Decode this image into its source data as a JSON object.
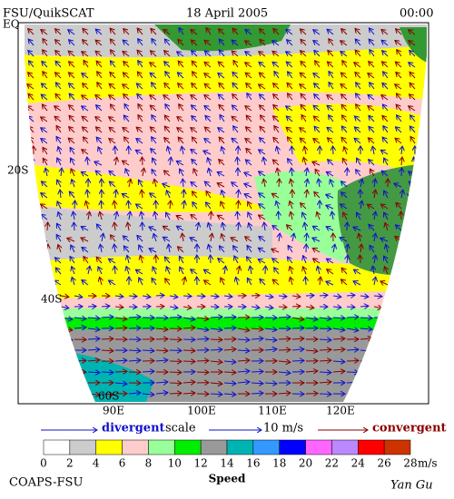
{
  "header": {
    "product": "FSU/QuikSCAT",
    "date": "18 April 2005",
    "time": "00:00"
  },
  "map": {
    "lat_labels": [
      "EQ",
      "20S",
      "40S",
      "60S"
    ],
    "lon_labels": [
      "90E",
      "100E",
      "110E",
      "120E"
    ]
  },
  "legend": {
    "divergent": "divergent",
    "scale": "scale",
    "scale_value": "10 m/s",
    "convergent": "convergent"
  },
  "colorbar": {
    "title": "Speed",
    "unit": "m/s",
    "ticks": [
      0,
      2,
      4,
      6,
      8,
      10,
      12,
      14,
      16,
      18,
      20,
      22,
      24,
      26,
      28
    ],
    "colors": [
      "#ffffff",
      "#cccccc",
      "#ffff00",
      "#ffcccc",
      "#99ff99",
      "#00ee00",
      "#999999",
      "#00b3b3",
      "#3399ff",
      "#0000ff",
      "#ff66ff",
      "#bb88ff",
      "#ff0000",
      "#cc3300",
      "#000000"
    ]
  },
  "credits": {
    "institution": "COAPS-FSU",
    "author": "Yan Gu"
  }
}
